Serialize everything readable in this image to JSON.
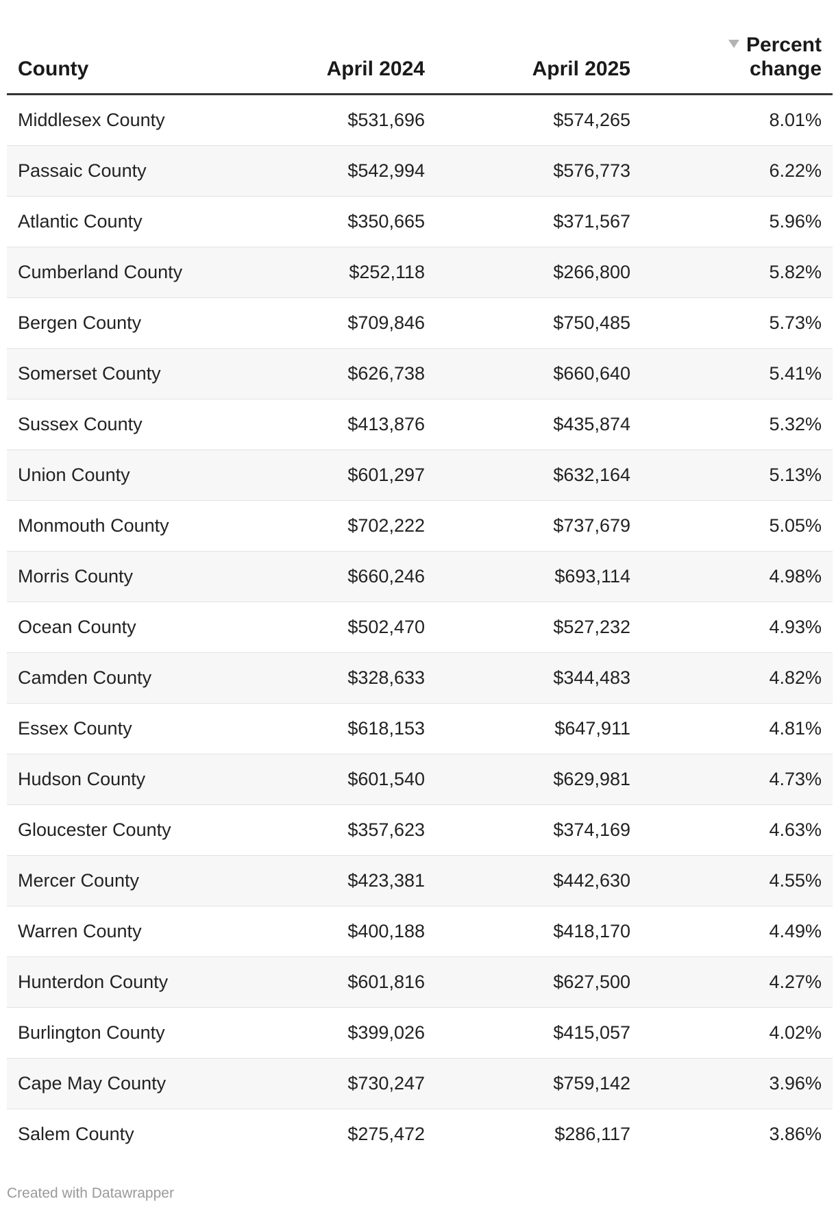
{
  "chart_data": {
    "type": "table",
    "columns": [
      "County",
      "April 2024",
      "April 2025",
      "Percent change"
    ],
    "sort": {
      "column": "Percent change",
      "direction": "descending"
    },
    "rows": [
      {
        "county": "Middlesex County",
        "april_2024": "$531,696",
        "april_2025": "$574,265",
        "percent_change": "8.01%"
      },
      {
        "county": "Passaic County",
        "april_2024": "$542,994",
        "april_2025": "$576,773",
        "percent_change": "6.22%"
      },
      {
        "county": "Atlantic County",
        "april_2024": "$350,665",
        "april_2025": "$371,567",
        "percent_change": "5.96%"
      },
      {
        "county": "Cumberland County",
        "april_2024": "$252,118",
        "april_2025": "$266,800",
        "percent_change": "5.82%"
      },
      {
        "county": "Bergen County",
        "april_2024": "$709,846",
        "april_2025": "$750,485",
        "percent_change": "5.73%"
      },
      {
        "county": "Somerset County",
        "april_2024": "$626,738",
        "april_2025": "$660,640",
        "percent_change": "5.41%"
      },
      {
        "county": "Sussex County",
        "april_2024": "$413,876",
        "april_2025": "$435,874",
        "percent_change": "5.32%"
      },
      {
        "county": "Union County",
        "april_2024": "$601,297",
        "april_2025": "$632,164",
        "percent_change": "5.13%"
      },
      {
        "county": "Monmouth County",
        "april_2024": "$702,222",
        "april_2025": "$737,679",
        "percent_change": "5.05%"
      },
      {
        "county": "Morris County",
        "april_2024": "$660,246",
        "april_2025": "$693,114",
        "percent_change": "4.98%"
      },
      {
        "county": "Ocean County",
        "april_2024": "$502,470",
        "april_2025": "$527,232",
        "percent_change": "4.93%"
      },
      {
        "county": "Camden County",
        "april_2024": "$328,633",
        "april_2025": "$344,483",
        "percent_change": "4.82%"
      },
      {
        "county": "Essex County",
        "april_2024": "$618,153",
        "april_2025": "$647,911",
        "percent_change": "4.81%"
      },
      {
        "county": "Hudson County",
        "april_2024": "$601,540",
        "april_2025": "$629,981",
        "percent_change": "4.73%"
      },
      {
        "county": "Gloucester County",
        "april_2024": "$357,623",
        "april_2025": "$374,169",
        "percent_change": "4.63%"
      },
      {
        "county": "Mercer County",
        "april_2024": "$423,381",
        "april_2025": "$442,630",
        "percent_change": "4.55%"
      },
      {
        "county": "Warren County",
        "april_2024": "$400,188",
        "april_2025": "$418,170",
        "percent_change": "4.49%"
      },
      {
        "county": "Hunterdon County",
        "april_2024": "$601,816",
        "april_2025": "$627,500",
        "percent_change": "4.27%"
      },
      {
        "county": "Burlington County",
        "april_2024": "$399,026",
        "april_2025": "$415,057",
        "percent_change": "4.02%"
      },
      {
        "county": "Cape May County",
        "april_2024": "$730,247",
        "april_2025": "$759,142",
        "percent_change": "3.96%"
      },
      {
        "county": "Salem County",
        "april_2024": "$275,472",
        "april_2025": "$286,117",
        "percent_change": "3.86%"
      }
    ]
  },
  "header": {
    "county": "County",
    "april_2024": "April 2024",
    "april_2025": "April 2025",
    "percent_change_line1": "Percent",
    "percent_change_line2": "change",
    "sort_icon": "sort-descending-triangle-icon"
  },
  "colors": {
    "header_rule": "#333333",
    "row_stripe": "#f7f7f7",
    "row_divider": "#e2e2e2",
    "sort_arrow": "#b3b3b3",
    "footer_text": "#9a9a9a"
  },
  "footer": {
    "credit": "Created with Datawrapper"
  }
}
